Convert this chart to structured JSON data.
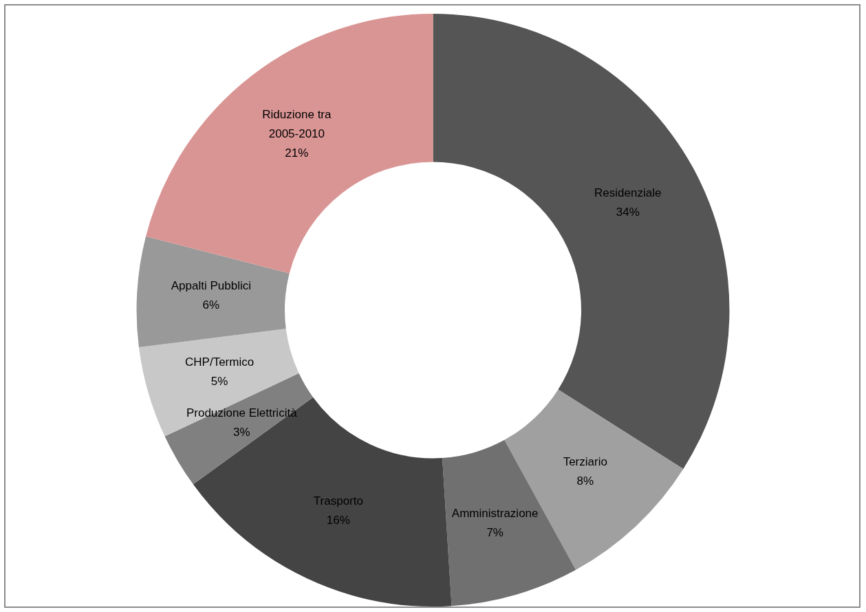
{
  "chart_data": {
    "type": "donut",
    "categories": [
      "Residenziale",
      "Terziario",
      "Amministrazione",
      "Trasporto",
      "Produzione Elettricità",
      "CHP/Termico",
      "Appalti Pubblici",
      "Riduzione tra 2005-2010"
    ],
    "values": [
      34,
      8,
      7,
      16,
      3,
      5,
      6,
      21
    ],
    "colors": [
      "#555555",
      "#a0a0a0",
      "#707070",
      "#444444",
      "#808080",
      "#c8c8c8",
      "#999999",
      "#d99594"
    ],
    "value_labels": [
      "34%",
      "8%",
      "7%",
      "16%",
      "3%",
      "5%",
      "6%",
      "21%"
    ],
    "legend": false
  }
}
